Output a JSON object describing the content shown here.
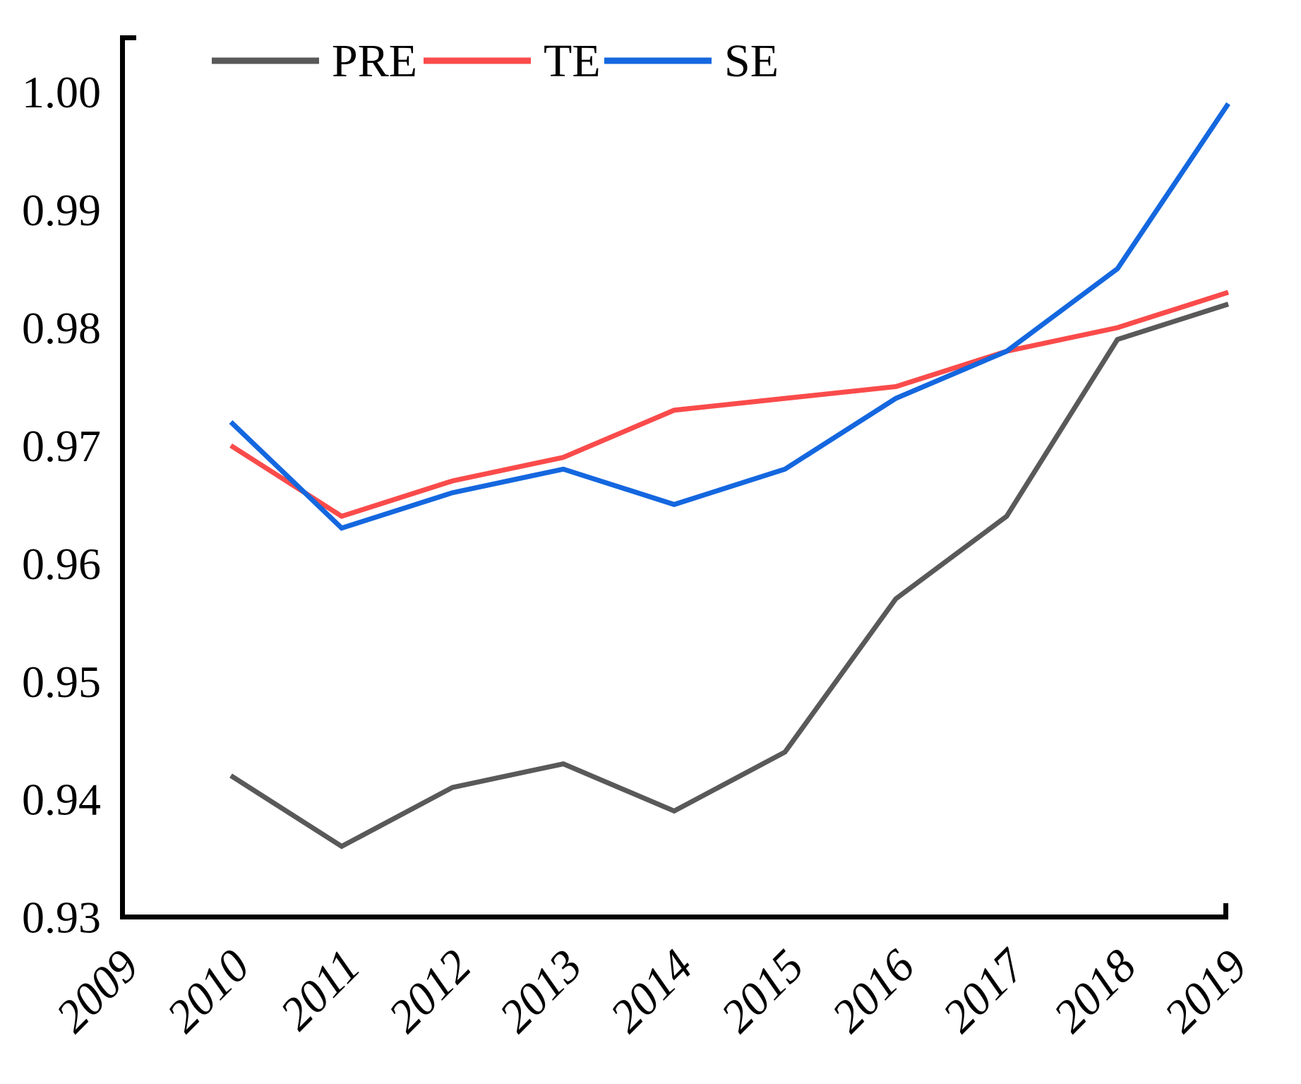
{
  "chart_data": {
    "type": "line",
    "title": "",
    "xlabel": "",
    "ylabel": "",
    "x": [
      2010,
      2011,
      2012,
      2013,
      2014,
      2015,
      2016,
      2017,
      2018,
      2019
    ],
    "series": [
      {
        "name": "PRE",
        "color": "#595959",
        "values": [
          0.942,
          0.936,
          0.941,
          0.943,
          0.939,
          0.944,
          0.957,
          0.964,
          0.979,
          0.982
        ]
      },
      {
        "name": "TE",
        "color": "#FA4B4B",
        "values": [
          0.97,
          0.964,
          0.967,
          0.969,
          0.973,
          0.974,
          0.975,
          0.978,
          0.98,
          0.983
        ]
      },
      {
        "name": "SE",
        "color": "#1467DF",
        "values": [
          0.972,
          0.963,
          0.966,
          0.968,
          0.965,
          0.968,
          0.974,
          0.978,
          0.985,
          0.999
        ]
      }
    ],
    "xticks": [
      "2009",
      "2010",
      "2011",
      "2012",
      "2013",
      "2014",
      "2015",
      "2016",
      "2017",
      "2018",
      "2019"
    ],
    "yticks": [
      "1.00",
      "0.99",
      "0.98",
      "0.97",
      "0.96",
      "0.95",
      "0.94",
      "0.93"
    ],
    "ytick_values": [
      1.0,
      0.99,
      0.98,
      0.97,
      0.96,
      0.95,
      0.94,
      0.93
    ],
    "xlim": [
      2009,
      2019
    ],
    "ylim": [
      0.9298,
      1.0048
    ],
    "grid": false,
    "legend_position": "top",
    "axis_color": "#000000"
  }
}
